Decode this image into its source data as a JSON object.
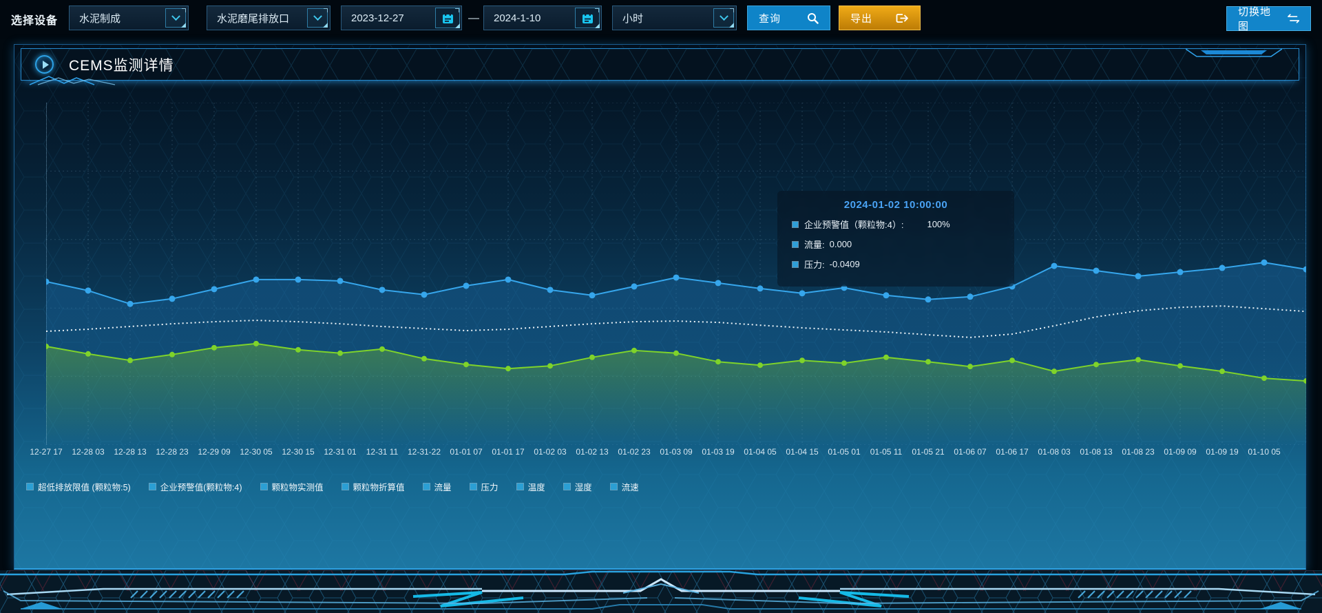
{
  "toolbar": {
    "device_label": "选择设备",
    "device_select": "水泥制成",
    "outlet_select": "水泥磨尾排放口",
    "date_start": "2023-12-27",
    "date_separator": "—",
    "date_end": "2024-1-10",
    "interval_select": "小时",
    "query_label": "查询",
    "export_label": "导出",
    "switch_map_label": "切换地图"
  },
  "panel": {
    "title": "CEMS监测详情"
  },
  "tooltip": {
    "title": "2024-01-02 10:00:00",
    "rows": [
      {
        "label": "企业预警值（颗粒物:4）:",
        "value": "100%"
      },
      {
        "label": "流量:",
        "value": "0.000"
      },
      {
        "label": "压力:",
        "value": "-0.0409"
      }
    ]
  },
  "legend": [
    "超低排放限值 (颗粒物:5)",
    "企业预警值(颗粒物:4)",
    "颗粒物实测值",
    "颗粒物折算值",
    "流量",
    "压力",
    "温度",
    "湿度",
    "流速"
  ],
  "colors": {
    "accent_blue": "#1285ca",
    "accent_orange": "#dd9212",
    "tooltip_title": "#4aa3f5",
    "x_label": "#d5e5ef",
    "grid": "rgba(130,180,215,0.22)"
  },
  "chart_data": {
    "type": "line",
    "title": "CEMS监测详情",
    "xlabel": "",
    "ylabel": "",
    "ylim": [
      0,
      100
    ],
    "grid": true,
    "legend_position": "bottom",
    "note": "y-axis unlabeled; values are percent of plot height estimated from pixels; each series has 31 points, the 31st extends past the last x label to the plot right edge",
    "categories": [
      "12-27 17",
      "12-28 03",
      "12-28 13",
      "12-28 23",
      "12-29 09",
      "12-30 05",
      "12-30 15",
      "12-31 01",
      "12-31 11",
      "12-31-22",
      "01-01 07",
      "01-01 17",
      "01-02 03",
      "01-02 13",
      "01-02 23",
      "01-03 09",
      "01-03 19",
      "01-04 05",
      "01-04 15",
      "01-05 01",
      "01-05 11",
      "01-05 21",
      "01-06 07",
      "01-06 17",
      "01-08 03",
      "01-08 13",
      "01-08 23",
      "01-09 09",
      "01-09 19",
      "01-10 05"
    ],
    "series": [
      {
        "name": "流量",
        "color": "#36a6ec",
        "style": "solid",
        "markers": true,
        "marker_r": 4.5,
        "area": true,
        "area_top": "rgba(28,112,176,0.40)",
        "area_bottom": "rgba(28,112,176,0.03)",
        "values": [
          47.7,
          45.1,
          41.2,
          42.7,
          45.5,
          48.3,
          48.3,
          47.9,
          45.3,
          43.9,
          46.5,
          48.3,
          45.3,
          43.7,
          46.3,
          48.9,
          47.3,
          45.7,
          44.3,
          45.9,
          43.7,
          42.5,
          43.3,
          46.3,
          52.3,
          50.9,
          49.3,
          50.5,
          51.7,
          53.3,
          51.3
        ]
      },
      {
        "name": "企业预警值(颗粒物:4)",
        "color": "#eef5f9",
        "style": "dotted",
        "markers": false,
        "marker_r": 0,
        "area": false,
        "values": [
          33.2,
          33.8,
          34.6,
          35.4,
          36.0,
          36.4,
          36.0,
          35.4,
          34.6,
          34.0,
          33.4,
          33.8,
          34.6,
          35.4,
          36.0,
          36.2,
          35.8,
          35.0,
          34.2,
          33.6,
          33.0,
          32.2,
          31.4,
          32.4,
          34.8,
          37.4,
          39.2,
          40.2,
          40.6,
          39.8,
          39.0
        ]
      },
      {
        "name": "压力",
        "color": "#7fd32a",
        "style": "solid",
        "markers": true,
        "marker_r": 4,
        "area": true,
        "area_top": "rgba(118,190,44,0.42)",
        "area_bottom": "rgba(118,190,44,0.0)",
        "values": [
          28.8,
          26.6,
          24.7,
          26.4,
          28.4,
          29.6,
          27.8,
          26.8,
          28.0,
          25.2,
          23.5,
          22.3,
          23.1,
          25.6,
          27.6,
          26.8,
          24.3,
          23.3,
          24.7,
          23.9,
          25.6,
          24.3,
          22.9,
          24.7,
          21.5,
          23.5,
          24.9,
          23.1,
          21.5,
          19.5,
          18.7
        ]
      }
    ]
  }
}
